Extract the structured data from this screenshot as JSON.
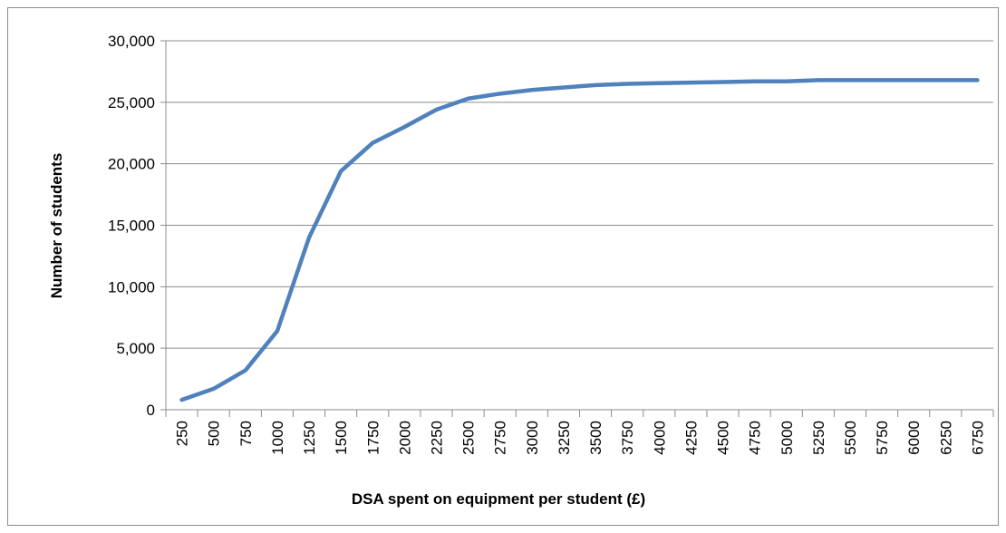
{
  "chart_data": {
    "type": "line",
    "x_label": "DSA spent on equipment per student (£)",
    "y_label": "Number of students",
    "categories": [
      "250",
      "500",
      "750",
      "1000",
      "1250",
      "1500",
      "1750",
      "2000",
      "2250",
      "2500",
      "2750",
      "3000",
      "3250",
      "3500",
      "3750",
      "4000",
      "4250",
      "4500",
      "4750",
      "5000",
      "5250",
      "5500",
      "5750",
      "6000",
      "6250",
      "6750"
    ],
    "series": [
      {
        "name": "Number of students",
        "color": "#4f81bd",
        "values": [
          800,
          1700,
          3200,
          6400,
          14000,
          19400,
          21700,
          23000,
          24400,
          25300,
          25700,
          26000,
          26200,
          26400,
          26500,
          26550,
          26600,
          26650,
          26700,
          26700,
          26800,
          26800,
          26800,
          26800,
          26800,
          26800
        ]
      }
    ],
    "ylim": [
      0,
      30000
    ],
    "yticks": [
      0,
      {
        "value": 5000,
        "label": "5,000"
      },
      {
        "value": 10000,
        "label": "10,000"
      },
      {
        "value": 15000,
        "label": "15,000"
      },
      {
        "value": 20000,
        "label": "20,000"
      },
      {
        "value": 25000,
        "label": "25,000"
      },
      {
        "value": 30000,
        "label": "30,000"
      }
    ],
    "grid": true
  }
}
